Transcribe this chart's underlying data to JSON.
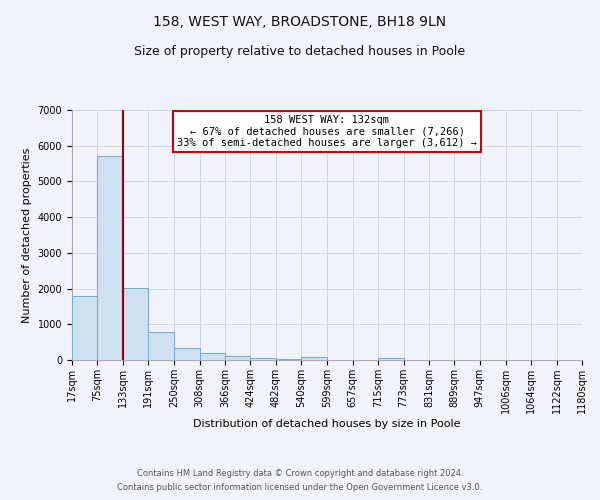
{
  "title": "158, WEST WAY, BROADSTONE, BH18 9LN",
  "subtitle": "Size of property relative to detached houses in Poole",
  "xlabel": "Distribution of detached houses by size in Poole",
  "ylabel": "Number of detached properties",
  "bar_edges": [
    17,
    75,
    133,
    191,
    250,
    308,
    366,
    424,
    482,
    540,
    599,
    657,
    715,
    773,
    831,
    889,
    947,
    1006,
    1064,
    1122,
    1180
  ],
  "bar_heights": [
    1780,
    5700,
    2020,
    790,
    350,
    185,
    110,
    50,
    30,
    80,
    0,
    0,
    60,
    0,
    0,
    0,
    0,
    0,
    0,
    0
  ],
  "bar_color": "#cfe0f0",
  "bar_edge_color": "#6fa8d4",
  "vline_x": 133,
  "vline_color": "#990000",
  "annotation_text": "158 WEST WAY: 132sqm\n← 67% of detached houses are smaller (7,266)\n33% of semi-detached houses are larger (3,612) →",
  "annotation_box_color": "#ffffff",
  "annotation_border_color": "#cc0000",
  "ylim": [
    0,
    7000
  ],
  "yticks": [
    0,
    1000,
    2000,
    3000,
    4000,
    5000,
    6000,
    7000
  ],
  "xtick_labels": [
    "17sqm",
    "75sqm",
    "133sqm",
    "191sqm",
    "250sqm",
    "308sqm",
    "366sqm",
    "424sqm",
    "482sqm",
    "540sqm",
    "599sqm",
    "657sqm",
    "715sqm",
    "773sqm",
    "831sqm",
    "889sqm",
    "947sqm",
    "1006sqm",
    "1064sqm",
    "1122sqm",
    "1180sqm"
  ],
  "footer_line1": "Contains HM Land Registry data © Crown copyright and database right 2024.",
  "footer_line2": "Contains public sector information licensed under the Open Government Licence v3.0.",
  "bg_color": "#f0f4fa",
  "grid_color": "#d0d8e8",
  "title_fontsize": 10,
  "subtitle_fontsize": 9,
  "axis_label_fontsize": 8,
  "tick_fontsize": 7,
  "footer_fontsize": 6,
  "annotation_fontsize": 7.5
}
